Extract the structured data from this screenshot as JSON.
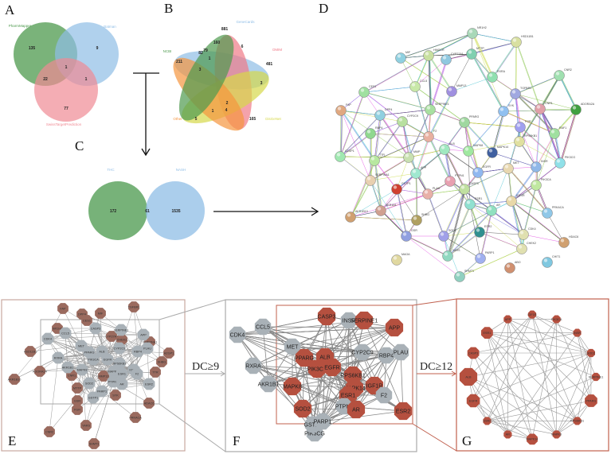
{
  "panels": {
    "a": "A",
    "b": "B",
    "c": "C",
    "d": "D",
    "e": "E",
    "f": "F",
    "g": "G"
  },
  "venn_a": {
    "sets": [
      "PharmMapper",
      "Batman",
      "SwissTargetPrediction"
    ],
    "counts": {
      "pharm_only": "135",
      "batman_only": "9",
      "all": "1",
      "pharm_swiss": "22",
      "batman_swiss": "1",
      "swiss_only": "77"
    },
    "colors": [
      "#4e9a4e",
      "#8fbde6",
      "#f08a94"
    ]
  },
  "venn_b": {
    "sets": [
      "GeneCards",
      "OMIM",
      "DisGeNet",
      "Other",
      "NCBI"
    ],
    "counts": [
      "881",
      "160",
      "6",
      "82",
      "79",
      "211",
      "1",
      "481",
      "3",
      "3",
      "2",
      "1",
      "4",
      "5",
      "165"
    ],
    "colors": [
      "#8fbde6",
      "#f07a88",
      "#d6d84a",
      "#f5953f",
      "#4e9a4e"
    ]
  },
  "venn_c": {
    "sets": [
      "THC",
      "NASH"
    ],
    "counts": {
      "thc_only": "172",
      "overlap": "61",
      "nash_only": "1535"
    },
    "colors": [
      "#5fa462",
      "#8fbde6"
    ]
  },
  "network_d": {
    "nodes": [
      "NR1H2",
      "HSD11B1",
      "MIF",
      "HMGCR",
      "CYP27A1",
      "MTTP",
      "RXRA",
      "CNR2",
      "CCL5",
      "MMP13",
      "TGFBR1",
      "CES1",
      "FAP",
      "SERPINE1",
      "CNR1",
      "ADORA2A",
      "DPP4",
      "CYP2C9",
      "PPARG",
      "SYK",
      "FGR",
      "RBP4",
      "F2",
      "RAF1",
      "RPS6KB1",
      "ALB",
      "MAPK8",
      "MAPK14",
      "AZGP1",
      "TTR",
      "MMP",
      "MET",
      "INSR",
      "PIK3CG",
      "APP",
      "EGFR",
      "SERPINA1",
      "PTPN1",
      "PIK3CA",
      "GSTP1",
      "PLAU",
      "CASP3",
      "ESR1",
      "AR",
      "IGF1R",
      "AKR1B1",
      "AKR1B10",
      "SHBG",
      "PRKACA",
      "ESR2",
      "GSR",
      "SOD2",
      "CDK4",
      "HDAC6",
      "CHEK2",
      "YARS",
      "PARP1",
      "MAOA",
      "CHIT1",
      "ABO",
      "SHMT1"
    ]
  },
  "network_e": {
    "hub_color": "#a9b1b7",
    "outer_color": "#9a6a5e",
    "nodes": [
      {
        "name": "FAP",
        "core": false
      },
      {
        "name": "DPP4",
        "core": false
      },
      {
        "name": "MIF",
        "core": false
      },
      {
        "name": "TGFBR1",
        "core": false
      },
      {
        "name": "CES1",
        "core": false
      },
      {
        "name": "NR1H2",
        "core": false
      },
      {
        "name": "HSD11B1",
        "core": false
      },
      {
        "name": "AKR1B10",
        "core": false
      },
      {
        "name": "ADORA2A",
        "core": false
      },
      {
        "name": "CNR1",
        "core": false
      },
      {
        "name": "MTTP",
        "core": false
      },
      {
        "name": "GSR",
        "core": false
      },
      {
        "name": "FGR",
        "core": false
      },
      {
        "name": "CNR2",
        "core": false
      },
      {
        "name": "YARS",
        "core": false
      },
      {
        "name": "SHMT1",
        "core": false
      },
      {
        "name": "SYK",
        "core": false
      },
      {
        "name": "MMP13",
        "core": false
      },
      {
        "name": "CYP27A1",
        "core": false
      },
      {
        "name": "CHEK2",
        "core": false
      },
      {
        "name": "SERPINA1",
        "core": false
      },
      {
        "name": "AZGP1",
        "core": false
      },
      {
        "name": "SHBG",
        "core": false
      },
      {
        "name": "TTR",
        "core": false
      },
      {
        "name": "HDAC6",
        "core": false
      },
      {
        "name": "PRKACA",
        "core": false
      },
      {
        "name": "CCL5",
        "core": true
      },
      {
        "name": "CDK4",
        "core": true
      },
      {
        "name": "CASP3",
        "core": true
      },
      {
        "name": "SERPINE1",
        "core": true
      },
      {
        "name": "APP",
        "core": true
      },
      {
        "name": "MET",
        "core": true
      },
      {
        "name": "PPARG",
        "core": true
      },
      {
        "name": "ALB",
        "core": true
      },
      {
        "name": "CYP2C9",
        "core": true
      },
      {
        "name": "RBP4",
        "core": true
      },
      {
        "name": "PLAU",
        "core": true
      },
      {
        "name": "RXRA",
        "core": true
      },
      {
        "name": "PIK3CA",
        "core": true
      },
      {
        "name": "EGFR",
        "core": true
      },
      {
        "name": "RPS6KB1",
        "core": true
      },
      {
        "name": "AKR1B1",
        "core": true
      },
      {
        "name": "MAPK8",
        "core": true
      },
      {
        "name": "IGF1R",
        "core": true
      },
      {
        "name": "MAPK14",
        "core": true
      },
      {
        "name": "ESR1",
        "core": true
      },
      {
        "name": "F2",
        "core": true
      },
      {
        "name": "SOD2",
        "core": true
      },
      {
        "name": "PTPN1",
        "core": true
      },
      {
        "name": "AR",
        "core": true
      },
      {
        "name": "ESR2",
        "core": true
      },
      {
        "name": "PARP1",
        "core": true
      },
      {
        "name": "GSTP1",
        "core": true
      }
    ]
  },
  "filter_1": {
    "label": "DC≥9",
    "color": "#aaaaaa"
  },
  "filter_2": {
    "label": "DC≥12",
    "color": "#c0604e"
  },
  "network_f": {
    "hub_color": "#b5503f",
    "other_color": "#a9b1b7",
    "nodes": [
      {
        "name": "CASP3",
        "hub": true
      },
      {
        "name": "INSR",
        "hub": false
      },
      {
        "name": "SERPINE1",
        "hub": true
      },
      {
        "name": "APP",
        "hub": true
      },
      {
        "name": "CCL5",
        "hub": false
      },
      {
        "name": "CDK4",
        "hub": false
      },
      {
        "name": "MET",
        "hub": false
      },
      {
        "name": "CYP2C9",
        "hub": false
      },
      {
        "name": "RBP4",
        "hub": false
      },
      {
        "name": "PLAU",
        "hub": false
      },
      {
        "name": "PPARG",
        "hub": true
      },
      {
        "name": "ALB",
        "hub": true
      },
      {
        "name": "RXRA",
        "hub": false
      },
      {
        "name": "PIK3CA",
        "hub": true
      },
      {
        "name": "EGFR",
        "hub": true
      },
      {
        "name": "RPS6KB1",
        "hub": true
      },
      {
        "name": "AKR1B1",
        "hub": false
      },
      {
        "name": "MAPK8",
        "hub": true
      },
      {
        "name": "IGF1R",
        "hub": true
      },
      {
        "name": "MAPK14",
        "hub": true
      },
      {
        "name": "ESR1",
        "hub": true
      },
      {
        "name": "F2",
        "hub": false
      },
      {
        "name": "SOD2",
        "hub": true
      },
      {
        "name": "PTPN1",
        "hub": false
      },
      {
        "name": "AR",
        "hub": true
      },
      {
        "name": "ESR2",
        "hub": true
      },
      {
        "name": "PIK3CG",
        "hub": false
      },
      {
        "name": "GSTP1",
        "hub": false
      },
      {
        "name": "PARP1",
        "hub": false
      }
    ]
  },
  "network_g": {
    "node_color": "#b5503f",
    "nodes": [
      "IGF1R",
      "PIK3CA",
      "INSR",
      "SOD2",
      "SERPINE1",
      "PPARG",
      "RPS6KB1",
      "MAPK8",
      "MAPK14",
      "AR",
      "ESR2",
      "EGFR",
      "ALB",
      "CASP3",
      "ESR1",
      "APP"
    ]
  }
}
